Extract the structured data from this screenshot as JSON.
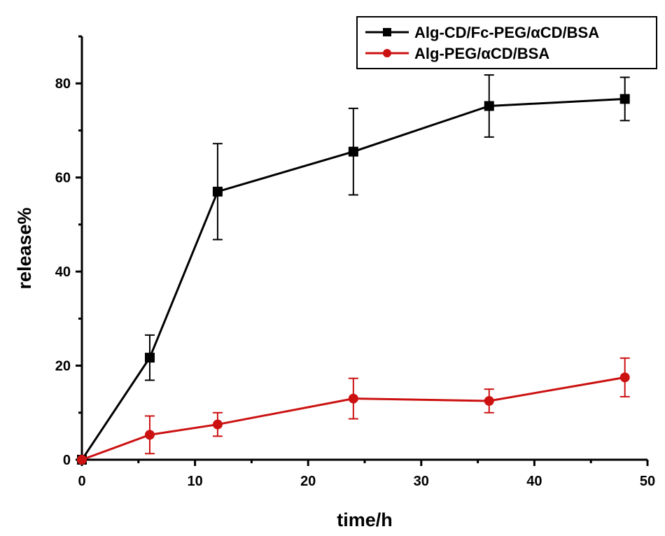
{
  "chart_data": {
    "type": "line",
    "xlabel": "time/h",
    "ylabel": "release%",
    "xlim": [
      0,
      50
    ],
    "ylim": [
      0,
      90
    ],
    "x_ticks": [
      0,
      10,
      20,
      30,
      40,
      50
    ],
    "y_ticks": [
      0,
      20,
      40,
      60,
      80
    ],
    "grid": false,
    "legend_position": "top-right",
    "series": [
      {
        "name": "Alg-CD/Fc-PEG/αCD/BSA",
        "color": "#000000",
        "marker": "square",
        "x": [
          0,
          6,
          12,
          24,
          36,
          48
        ],
        "y": [
          0,
          21.7,
          57,
          65.5,
          75.2,
          76.7
        ],
        "error": [
          0,
          4.8,
          10.2,
          9.2,
          6.6,
          4.6
        ]
      },
      {
        "name": "Alg-PEG/αCD/BSA",
        "color": "#cc1111",
        "marker": "circle",
        "x": [
          0,
          6,
          12,
          24,
          36,
          48
        ],
        "y": [
          0,
          5.3,
          7.5,
          13,
          12.5,
          17.5
        ],
        "error": [
          0,
          4,
          2.5,
          4.3,
          2.5,
          4.1
        ]
      }
    ]
  }
}
